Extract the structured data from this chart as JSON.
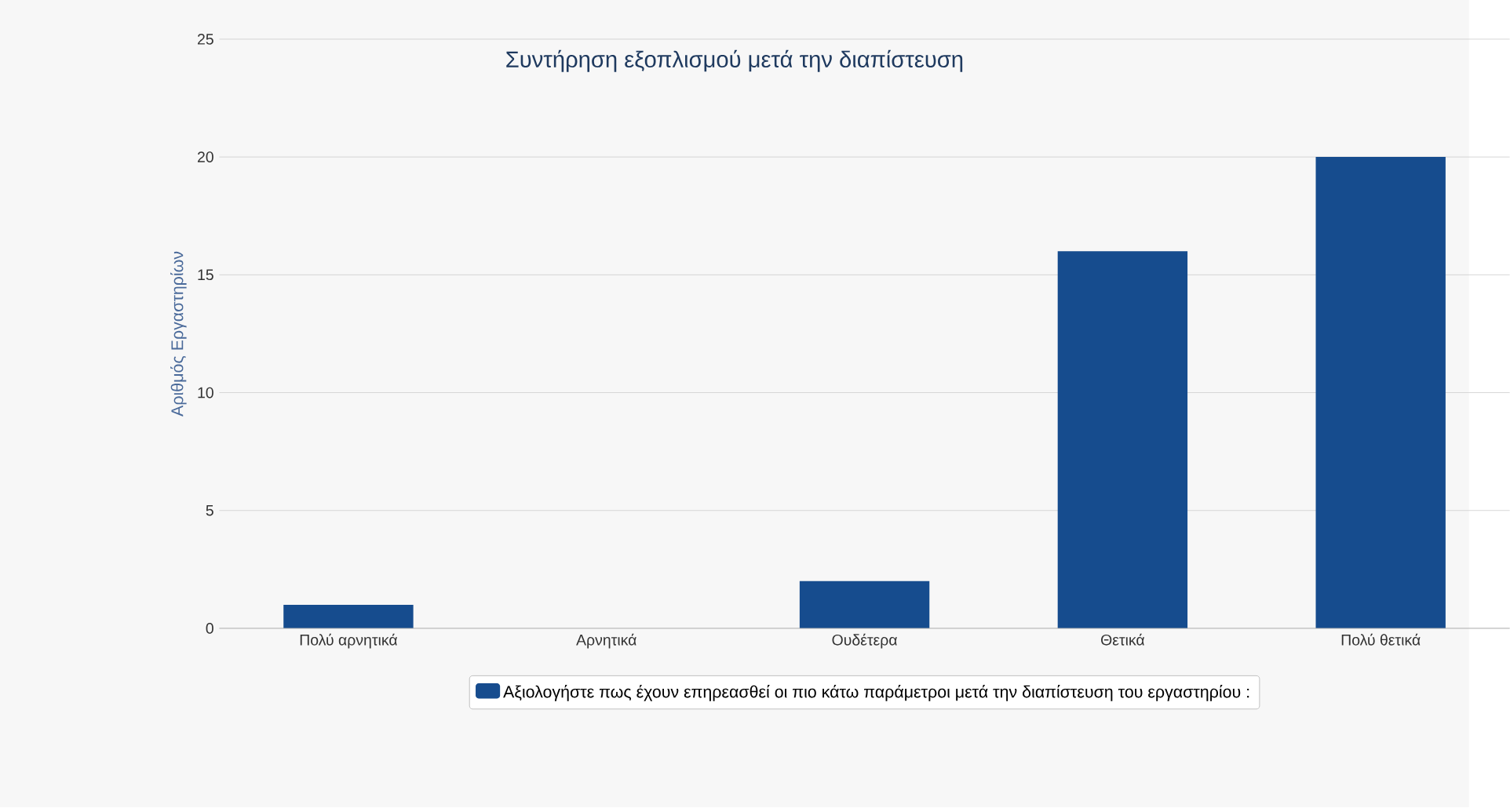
{
  "chart_data": {
    "type": "bar",
    "title": "Συντήρηση εξοπλισμού μετά την διαπίστευση",
    "ylabel": "Αριθμός Εργαστηρίων",
    "categories": [
      "Πολύ αρνητικά",
      "Αρνητικά",
      "Ουδέτερα",
      "Θετικά",
      "Πολύ θετικά"
    ],
    "series": [
      {
        "name": "Αξιολογήστε πως έχουν επηρεασθεί οι πιο κάτω παράμετροι μετά την διαπίστευση του εργαστηρίου :",
        "color": "#164c8e",
        "values": [
          1,
          0,
          2,
          16,
          20
        ]
      }
    ],
    "ylim": [
      0,
      25
    ],
    "yticks": [
      0,
      5,
      10,
      15,
      20,
      25
    ],
    "grid": "y",
    "legend": "bottom"
  }
}
